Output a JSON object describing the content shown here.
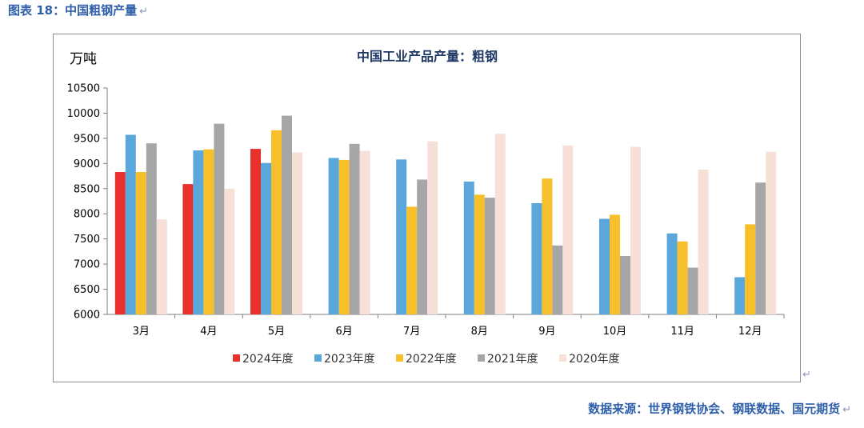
{
  "caption": "图表 18：中国粗钢产量",
  "source": "数据来源：世界钢铁协会、钢联数据、国元期货",
  "colors": {
    "caption": "#2e5fa8",
    "series": [
      "#e8312c",
      "#5aa7dc",
      "#f7bf2a",
      "#a6a6a6",
      "#f6e0d8"
    ]
  },
  "chart_data": {
    "type": "bar",
    "title": "中国工业产品产量：粗钢",
    "ylabel": "万吨",
    "xlabel": "",
    "ylim": [
      6000,
      10500
    ],
    "yticks": [
      6000,
      6500,
      7000,
      7500,
      8000,
      8500,
      9000,
      9500,
      10000,
      10500
    ],
    "grid": false,
    "legend_position": "bottom",
    "categories": [
      "3月",
      "4月",
      "5月",
      "6月",
      "7月",
      "8月",
      "9月",
      "10月",
      "11月",
      "12月"
    ],
    "series": [
      {
        "name": "2024年度",
        "values": [
          8830,
          8590,
          9290,
          null,
          null,
          null,
          null,
          null,
          null,
          null
        ]
      },
      {
        "name": "2023年度",
        "values": [
          9570,
          9260,
          9010,
          9110,
          9080,
          8640,
          8210,
          7900,
          7610,
          6740
        ]
      },
      {
        "name": "2022年度",
        "values": [
          8830,
          9280,
          9660,
          9070,
          8140,
          8380,
          8700,
          7980,
          7450,
          7790
        ]
      },
      {
        "name": "2021年度",
        "values": [
          9400,
          9790,
          9950,
          9390,
          8680,
          8320,
          7370,
          7160,
          6930,
          8620
        ]
      },
      {
        "name": "2020年度",
        "values": [
          7890,
          8500,
          9220,
          9250,
          9440,
          9590,
          9360,
          9330,
          8880,
          9230
        ]
      }
    ]
  }
}
